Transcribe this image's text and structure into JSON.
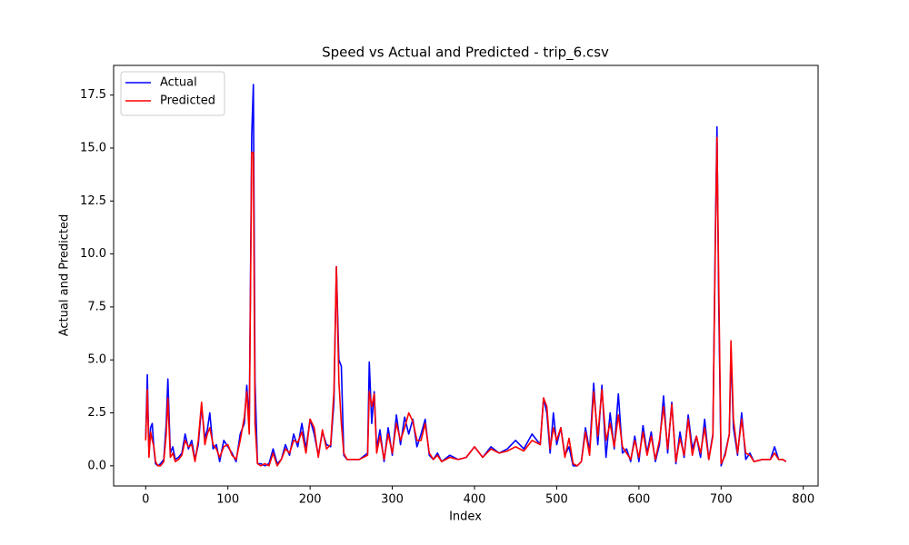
{
  "chart_data": {
    "type": "line",
    "title": "Speed vs Actual and Predicted - trip_6.csv",
    "xlabel": "Index",
    "ylabel": "Actual and Predicted",
    "xlim": [
      -39,
      818
    ],
    "ylim": [
      -0.95,
      18.9
    ],
    "xticks": [
      0,
      100,
      200,
      300,
      400,
      500,
      600,
      700,
      800
    ],
    "yticks": [
      {
        "value": 0,
        "label": "0.0"
      },
      2.5,
      {
        "value": 5,
        "label": "5.0"
      },
      7.5,
      {
        "value": 10,
        "label": "10.0"
      },
      12.5,
      {
        "value": 15,
        "label": "15.0"
      },
      17.5
    ],
    "legend": "upper left",
    "x": [
      0,
      2,
      4,
      6,
      8,
      10,
      12,
      15,
      18,
      22,
      25,
      27,
      30,
      33,
      36,
      40,
      44,
      48,
      52,
      56,
      60,
      64,
      68,
      72,
      75,
      78,
      82,
      86,
      90,
      95,
      100,
      105,
      110,
      115,
      120,
      123,
      126,
      129,
      131,
      133,
      136,
      140,
      145,
      150,
      155,
      160,
      165,
      170,
      175,
      180,
      185,
      190,
      195,
      200,
      205,
      210,
      215,
      220,
      225,
      229,
      232,
      235,
      238,
      241,
      245,
      250,
      260,
      270,
      272,
      275,
      278,
      281,
      285,
      290,
      295,
      300,
      305,
      310,
      315,
      320,
      325,
      330,
      335,
      340,
      345,
      350,
      355,
      360,
      370,
      380,
      390,
      400,
      410,
      420,
      430,
      440,
      450,
      460,
      470,
      480,
      484,
      488,
      492,
      496,
      500,
      505,
      510,
      515,
      520,
      525,
      530,
      535,
      540,
      545,
      550,
      555,
      560,
      565,
      570,
      575,
      580,
      585,
      590,
      595,
      600,
      605,
      610,
      615,
      620,
      625,
      630,
      635,
      640,
      645,
      650,
      655,
      660,
      665,
      670,
      675,
      680,
      685,
      690,
      693,
      695,
      697,
      700,
      705,
      710,
      712,
      715,
      720,
      725,
      730,
      735,
      740,
      750,
      760,
      765,
      770,
      775,
      779
    ],
    "series": [
      {
        "name": "Actual",
        "color": "#0000ff",
        "values": [
          1.3,
          4.3,
          0.6,
          1.8,
          2.0,
          0.8,
          0.1,
          0,
          0.1,
          0.3,
          2.0,
          4.1,
          0.6,
          0.9,
          0.3,
          0.4,
          0.6,
          1.5,
          0.8,
          1.2,
          0.3,
          1.0,
          2.8,
          1.3,
          1.7,
          2.5,
          0.8,
          1.0,
          0.2,
          1.2,
          0.9,
          0.6,
          0.2,
          1.5,
          2.0,
          3.8,
          2.0,
          15.6,
          18.0,
          4.0,
          0.1,
          0.1,
          0,
          0.1,
          0.8,
          0.1,
          0.3,
          1.0,
          0.5,
          1.5,
          0.9,
          2.0,
          0.8,
          2.2,
          1.5,
          0.5,
          1.6,
          1.0,
          0.9,
          3.0,
          9.4,
          5.0,
          4.7,
          0.5,
          0.3,
          0.3,
          0.3,
          0.6,
          4.9,
          2.0,
          3.5,
          0.8,
          1.7,
          0.2,
          1.8,
          0.5,
          2.4,
          1.0,
          2.3,
          1.5,
          2.2,
          0.9,
          1.5,
          2.2,
          0.5,
          0.3,
          0.6,
          0.2,
          0.5,
          0.3,
          0.4,
          0.9,
          0.4,
          0.9,
          0.6,
          0.8,
          1.2,
          0.8,
          1.5,
          1.0,
          3.2,
          2.5,
          0.6,
          2.5,
          1.0,
          1.8,
          0.5,
          0.9,
          0,
          0,
          0.2,
          1.8,
          0.7,
          3.9,
          1.0,
          3.8,
          0.4,
          2.5,
          0.8,
          3.4,
          0.6,
          0.8,
          0.2,
          1.4,
          0.2,
          1.9,
          0.6,
          1.6,
          0.2,
          1.0,
          3.3,
          0.6,
          3.0,
          0.1,
          1.6,
          0.4,
          2.4,
          0.8,
          1.4,
          0.4,
          2.2,
          0.3,
          1.5,
          11.0,
          16.0,
          8.0,
          0,
          0.6,
          1.5,
          5.4,
          1.8,
          0.5,
          2.5,
          0.3,
          0.6,
          0.2,
          0.3,
          0.3,
          0.9,
          0.3,
          0.3,
          0.2
        ]
      },
      {
        "name": "Predicted",
        "color": "#ff0000",
        "values": [
          1.2,
          3.6,
          0.4,
          1.6,
          1.2,
          0.9,
          0.2,
          0,
          0,
          0.2,
          1.5,
          3.2,
          0.4,
          0.6,
          0.2,
          0.3,
          0.5,
          1.2,
          0.9,
          1.0,
          0.2,
          1.2,
          3.0,
          1.0,
          1.5,
          1.8,
          1.0,
          0.8,
          0.4,
          0.9,
          1.0,
          0.5,
          0.3,
          1.2,
          2.3,
          3.5,
          1.5,
          14.8,
          14.8,
          2.0,
          0.1,
          0,
          0.1,
          0,
          0.6,
          0,
          0.3,
          0.8,
          0.6,
          1.2,
          1.1,
          1.6,
          0.6,
          2.2,
          1.8,
          0.4,
          1.7,
          0.8,
          1.0,
          3.5,
          9.4,
          4.0,
          2.0,
          0.6,
          0.3,
          0.3,
          0.3,
          0.5,
          3.5,
          2.8,
          3.4,
          0.6,
          1.4,
          0.3,
          1.5,
          0.6,
          2.0,
          1.2,
          1.8,
          2.5,
          2.1,
          1.2,
          1.2,
          2.0,
          0.6,
          0.3,
          0.5,
          0.2,
          0.4,
          0.3,
          0.4,
          0.9,
          0.4,
          0.8,
          0.6,
          0.7,
          0.9,
          0.7,
          1.2,
          1.0,
          3.2,
          2.8,
          0.8,
          1.8,
          1.2,
          1.8,
          0.4,
          1.3,
          0.1,
          0,
          0.2,
          1.6,
          0.5,
          3.5,
          1.4,
          3.6,
          1.2,
          2.0,
          0.9,
          2.4,
          0.9,
          0.6,
          0.3,
          1.2,
          0.4,
          1.6,
          0.5,
          1.4,
          0.3,
          1.2,
          2.8,
          0.8,
          2.9,
          0.2,
          1.3,
          0.5,
          2.2,
          0.5,
          1.4,
          0.6,
          1.8,
          0.3,
          1.4,
          10.5,
          15.5,
          9.0,
          0.1,
          0.5,
          1.5,
          5.9,
          2.2,
          0.6,
          2.2,
          0.6,
          0.5,
          0.2,
          0.3,
          0.3,
          0.6,
          0.3,
          0.3,
          0.2
        ]
      }
    ]
  }
}
